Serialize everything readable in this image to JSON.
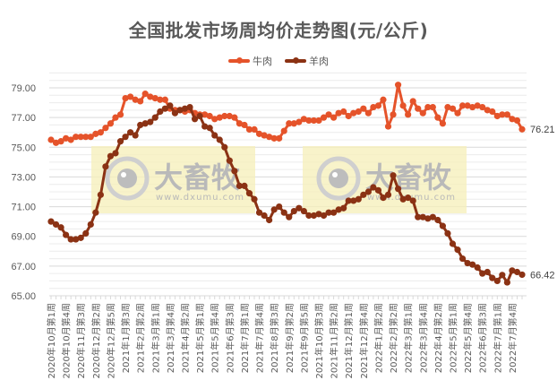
{
  "title": "全国批发市场周均价走势图(元/公斤)",
  "legend": [
    {
      "label": "牛肉",
      "color": "#E5532A"
    },
    {
      "label": "羊肉",
      "color": "#8B3214"
    }
  ],
  "watermark": {
    "brand": "大畜牧",
    "url": "www.dxumu.com"
  },
  "end_labels": {
    "beef": "76.21",
    "mutton": "66.42"
  },
  "chart_data": {
    "type": "line",
    "title": "全国批发市场周均价走势图(元/公斤)",
    "xlabel": "",
    "ylabel": "",
    "ylim": [
      65,
      80
    ],
    "yticks": [
      "65.00",
      "67.00",
      "69.00",
      "71.00",
      "73.00",
      "75.00",
      "77.00",
      "79.00"
    ],
    "grid": true,
    "legend_position": "top",
    "x_tick_labels": [
      "2020年10月第1周",
      "2020年10月第4周",
      "2020年11月第3周",
      "2020年12月第2周",
      "2020年12月第5周",
      "2021年1月第3周",
      "2021年2月第2周",
      "2021年3月第1周",
      "2021年3月第4周",
      "2021年4月第2周",
      "2021年5月第1周",
      "2021年5月第4周",
      "2021年6月第3周",
      "2021年7月第1周",
      "2021年7月第4周",
      "2021年8月第3周",
      "2021年9月第2周",
      "2021年9月第5周",
      "2021年10月第3周",
      "2021年11月第2周",
      "2021年12月第1周",
      "2021年12月第4周",
      "2022年1月第2周",
      "2022年2月第2周",
      "2022年3月第1周",
      "2022年3月第4周",
      "2022年4月第2周",
      "2022年5月第1周",
      "2022年5月第4周",
      "2022年6月第3周",
      "2022年7月第1周",
      "2022年7月第4周"
    ],
    "series": [
      {
        "name": "牛肉",
        "color": "#E5532A",
        "values": [
          75.5,
          75.3,
          75.4,
          75.6,
          75.5,
          75.7,
          75.7,
          75.7,
          75.7,
          75.9,
          76.0,
          76.3,
          76.6,
          77.0,
          77.2,
          78.3,
          78.4,
          78.2,
          78.1,
          78.6,
          78.4,
          78.3,
          78.2,
          78.2,
          77.6,
          77.5,
          77.5,
          77.4,
          77.5,
          77.3,
          77.2,
          77.2,
          77.1,
          76.9,
          77.0,
          77.1,
          77.1,
          77.0,
          76.6,
          76.5,
          76.2,
          76.2,
          75.9,
          75.8,
          75.7,
          75.6,
          75.6,
          76.1,
          76.6,
          76.6,
          76.7,
          76.9,
          76.8,
          76.8,
          76.8,
          77.0,
          77.2,
          77.0,
          77.3,
          77.4,
          77.1,
          77.3,
          77.4,
          77.6,
          77.3,
          77.7,
          77.8,
          78.2,
          76.4,
          77.2,
          79.2,
          77.8,
          77.2,
          78.1,
          77.6,
          77.3,
          77.7,
          77.7,
          77.0,
          76.6,
          77.7,
          77.6,
          77.3,
          77.8,
          77.8,
          77.7,
          77.8,
          77.7,
          77.5,
          77.4,
          77.1,
          77.2,
          77.2,
          76.9,
          76.8,
          76.21
        ]
      },
      {
        "name": "羊肉",
        "color": "#8B3214",
        "values": [
          70.0,
          69.8,
          69.6,
          69.1,
          68.8,
          68.8,
          68.9,
          69.2,
          69.8,
          70.6,
          71.8,
          73.7,
          74.4,
          74.6,
          75.4,
          75.7,
          76.0,
          75.8,
          76.5,
          76.6,
          76.7,
          77.0,
          77.4,
          77.6,
          77.8,
          77.3,
          77.5,
          77.6,
          77.7,
          76.9,
          77.1,
          76.4,
          76.3,
          75.8,
          75.5,
          75.0,
          74.1,
          73.4,
          72.4,
          72.4,
          71.9,
          71.5,
          70.6,
          70.4,
          70.1,
          70.8,
          71.0,
          70.6,
          70.3,
          70.7,
          70.9,
          70.7,
          70.4,
          70.4,
          70.5,
          70.4,
          70.6,
          70.6,
          70.8,
          70.9,
          71.4,
          71.4,
          71.5,
          71.8,
          72.0,
          72.3,
          72.1,
          71.6,
          71.8,
          73.1,
          72.2,
          71.5,
          71.6,
          71.4,
          70.3,
          70.3,
          70.2,
          70.3,
          70.1,
          69.7,
          69.2,
          68.5,
          68.1,
          67.5,
          67.2,
          67.1,
          66.9,
          66.5,
          66.6,
          66.2,
          66.0,
          66.4,
          65.9,
          66.7,
          66.6,
          66.42
        ]
      }
    ]
  }
}
